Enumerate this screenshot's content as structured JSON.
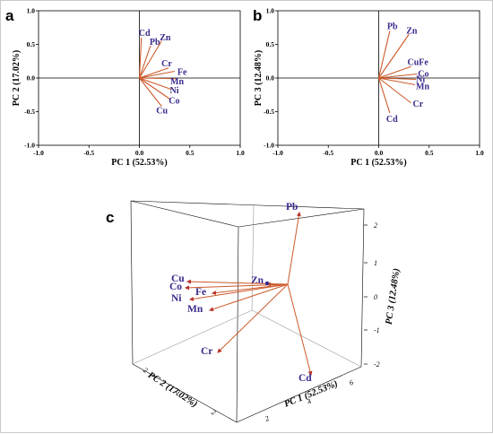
{
  "panels": {
    "a": "a",
    "b": "b",
    "c": "c"
  },
  "colors": {
    "vector": "#cc5a2a",
    "label": "#3a2a8c",
    "arrow3d": "#b8322a"
  },
  "chart_data": [
    {
      "type": "scatter",
      "subtype": "biplot",
      "panel": "a",
      "xlabel": "PC 1 (52.53%)",
      "ylabel": "PC 2 (17.02%)",
      "xlim": [
        -1,
        1
      ],
      "ylim": [
        -1,
        1
      ],
      "xticks": [
        "-1.0",
        "-0.5",
        "0.0",
        "0.5",
        "1.0"
      ],
      "yticks": [
        "-1.0",
        "-0.5",
        "0.0",
        "0.5",
        "1.0"
      ],
      "vectors": [
        {
          "name": "Cd",
          "x": 0.02,
          "y": 0.6
        },
        {
          "name": "Pb",
          "x": 0.11,
          "y": 0.48
        },
        {
          "name": "Zn",
          "x": 0.22,
          "y": 0.55
        },
        {
          "name": "Cr",
          "x": 0.29,
          "y": 0.15
        },
        {
          "name": "Fe",
          "x": 0.35,
          "y": 0.1
        },
        {
          "name": "Mn",
          "x": 0.36,
          "y": -0.01
        },
        {
          "name": "Ni",
          "x": 0.32,
          "y": -0.17
        },
        {
          "name": "Co",
          "x": 0.3,
          "y": -0.31
        },
        {
          "name": "Cu",
          "x": 0.22,
          "y": -0.42
        }
      ]
    },
    {
      "type": "scatter",
      "subtype": "biplot",
      "panel": "b",
      "xlabel": "PC 1 (52.53%)",
      "ylabel": "PC 3 (12.48%)",
      "xlim": [
        -1,
        1
      ],
      "ylim": [
        -1,
        1
      ],
      "xticks": [
        "-1.0",
        "-0.5",
        "0.0",
        "0.5",
        "1.0"
      ],
      "yticks": [
        "-1.0",
        "-0.5",
        "0.0",
        "0.5",
        "1.0"
      ],
      "vectors": [
        {
          "name": "Pb",
          "x": 0.11,
          "y": 0.7
        },
        {
          "name": "Zn",
          "x": 0.3,
          "y": 0.65
        },
        {
          "name": "CuFe",
          "x": 0.32,
          "y": 0.17
        },
        {
          "name": "Co",
          "x": 0.38,
          "y": 0.06
        },
        {
          "name": "Ni",
          "x": 0.37,
          "y": -0.02
        },
        {
          "name": "Mn",
          "x": 0.36,
          "y": -0.1
        },
        {
          "name": "Cr",
          "x": 0.32,
          "y": -0.37
        },
        {
          "name": "Cd",
          "x": 0.11,
          "y": -0.52
        }
      ]
    },
    {
      "type": "scatter",
      "subtype": "3d-biplot",
      "panel": "c",
      "xlabel": "PC 1 (52.53%)",
      "ylabel": "PC 2 (17.02%)",
      "zlabel": "PC 3 (12.48%)",
      "zticks": [
        "2",
        "1",
        "0",
        "-1",
        "-2"
      ],
      "pc1_ticks": [
        "6",
        "4",
        "2"
      ],
      "pc2_ticks": [
        "2",
        "0",
        "2"
      ],
      "vectors": [
        {
          "name": "Pb"
        },
        {
          "name": "Zn"
        },
        {
          "name": "Cu"
        },
        {
          "name": "Co"
        },
        {
          "name": "Fe"
        },
        {
          "name": "Ni"
        },
        {
          "name": "Mn"
        },
        {
          "name": "Cr"
        },
        {
          "name": "Cd"
        }
      ]
    }
  ]
}
